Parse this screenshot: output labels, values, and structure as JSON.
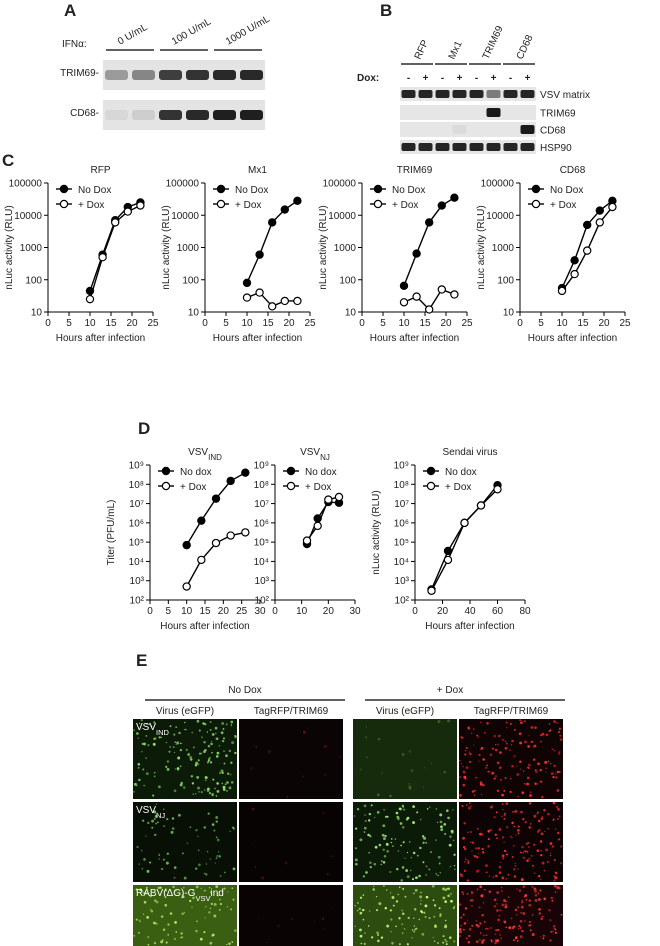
{
  "panel_a": {
    "letter": "A",
    "treatment": "IFNα:",
    "doses": [
      "0 U/mL",
      "100 U/mL",
      "1000 U/mL"
    ],
    "rows": [
      "TRIM69-",
      "CD68-"
    ]
  },
  "panel_b": {
    "letter": "B",
    "groups": [
      "RFP",
      "Mx1",
      "TRIM69",
      "CD68"
    ],
    "dox_label": "Dox:",
    "signs": [
      "-",
      "+"
    ],
    "rows": [
      "VSV matrix",
      "TRIM69",
      "CD68",
      "HSP90"
    ]
  },
  "panel_c": {
    "letter": "C"
  },
  "panel_d": {
    "letter": "D"
  },
  "chart_data": [
    {
      "type": "line",
      "title": "RFP",
      "xlabel": "Hours after infection",
      "ylabel": "nLuc activity (RLU)",
      "x": [
        10,
        13,
        16,
        19,
        22
      ],
      "series": [
        {
          "name": "No Dox",
          "color": "#000000",
          "marker": "filled",
          "values": [
            45,
            600,
            7000,
            18000,
            25000
          ]
        },
        {
          "name": "+ Dox",
          "color": "#000000",
          "marker": "open",
          "values": [
            25,
            500,
            6000,
            13000,
            20000
          ]
        }
      ],
      "xlim": [
        0,
        25
      ],
      "xticks": [
        0,
        5,
        10,
        15,
        20,
        25
      ],
      "ylim": [
        10,
        100000
      ],
      "yticks": [
        10,
        100,
        1000,
        10000,
        100000
      ],
      "ylog": true,
      "legend": "upper left"
    },
    {
      "type": "line",
      "title": "Mx1",
      "xlabel": "Hours after infection",
      "ylabel": "nLuc activity (RLU)",
      "x": [
        10,
        13,
        16,
        19,
        22
      ],
      "series": [
        {
          "name": "No Dox",
          "color": "#000000",
          "marker": "filled",
          "values": [
            80,
            600,
            6000,
            15000,
            28000
          ]
        },
        {
          "name": "+ Dox",
          "color": "#000000",
          "marker": "open",
          "values": [
            28,
            40,
            15,
            22,
            22
          ]
        }
      ],
      "xlim": [
        0,
        25
      ],
      "xticks": [
        0,
        5,
        10,
        15,
        20,
        25
      ],
      "ylim": [
        10,
        100000
      ],
      "yticks": [
        10,
        100,
        1000,
        10000,
        100000
      ],
      "ylog": true,
      "legend": "upper left"
    },
    {
      "type": "line",
      "title": "TRIM69",
      "xlabel": "Hours after infection",
      "ylabel": "nLuc activity (RLU)",
      "x": [
        10,
        13,
        16,
        19,
        22
      ],
      "series": [
        {
          "name": "No Dox",
          "color": "#000000",
          "marker": "filled",
          "values": [
            65,
            650,
            6000,
            20000,
            35000
          ]
        },
        {
          "name": "+ Dox",
          "color": "#000000",
          "marker": "open",
          "values": [
            20,
            30,
            12,
            50,
            35
          ]
        }
      ],
      "xlim": [
        0,
        25
      ],
      "xticks": [
        0,
        5,
        10,
        15,
        20,
        25
      ],
      "ylim": [
        10,
        100000
      ],
      "yticks": [
        10,
        100,
        1000,
        10000,
        100000
      ],
      "ylog": true,
      "legend": "upper left"
    },
    {
      "type": "line",
      "title": "CD68",
      "xlabel": "Hours after infection",
      "ylabel": "nLuc activity (RLU)",
      "x": [
        10,
        13,
        16,
        19,
        22
      ],
      "series": [
        {
          "name": "No Dox",
          "color": "#000000",
          "marker": "filled",
          "values": [
            55,
            400,
            5000,
            14000,
            28000
          ]
        },
        {
          "name": "+ Dox",
          "color": "#000000",
          "marker": "open",
          "values": [
            45,
            150,
            800,
            6000,
            18000
          ]
        }
      ],
      "xlim": [
        0,
        25
      ],
      "xticks": [
        0,
        5,
        10,
        15,
        20,
        25
      ],
      "ylim": [
        10,
        100000
      ],
      "yticks": [
        10,
        100,
        1000,
        10000,
        100000
      ],
      "ylog": true,
      "legend": "upper left"
    },
    {
      "type": "line",
      "title": "VSV",
      "title_sub": "IND",
      "xlabel": "Hours after infection",
      "ylabel": "Titer (PFU/mL)",
      "x": [
        10,
        14,
        18,
        22,
        26
      ],
      "series": [
        {
          "name": "No dox",
          "color": "#000000",
          "marker": "filled",
          "values": [
            70000,
            1300000,
            18000000,
            150000000,
            400000000
          ]
        },
        {
          "name": "+ Dox",
          "color": "#000000",
          "marker": "open",
          "values": [
            500,
            12000,
            90000,
            220000,
            320000
          ]
        }
      ],
      "xlim": [
        0,
        30
      ],
      "xticks": [
        0,
        5,
        10,
        15,
        20,
        25,
        30
      ],
      "ylim": [
        100,
        1000000000
      ],
      "yticks": [
        {
          "value": 100,
          "label": "10²"
        },
        {
          "value": 1000,
          "label": "10³"
        },
        {
          "value": 10000,
          "label": "10⁴"
        },
        {
          "value": 100000,
          "label": "10⁵"
        },
        {
          "value": 1000000,
          "label": "10⁶"
        },
        {
          "value": 10000000,
          "label": "10⁷"
        },
        {
          "value": 100000000,
          "label": "10⁸"
        },
        {
          "value": 1000000000,
          "label": "10⁹"
        }
      ],
      "ylog": true,
      "legend": "upper left"
    },
    {
      "type": "line",
      "title": "VSV",
      "title_sub": "NJ",
      "xlabel": "",
      "x": [
        12,
        16,
        20,
        24
      ],
      "series": [
        {
          "name": "No dox",
          "color": "#000000",
          "marker": "filled",
          "values": [
            80000,
            1700000,
            12000000,
            11000000
          ]
        },
        {
          "name": "+ Dox",
          "color": "#000000",
          "marker": "open",
          "values": [
            120000,
            700000,
            16000000,
            22000000
          ]
        }
      ],
      "xlim": [
        0,
        30
      ],
      "xticks": [
        0,
        10,
        20,
        30
      ],
      "ylim": [
        100,
        1000000000
      ],
      "yticks": [
        {
          "value": 100,
          "label": "10²"
        },
        {
          "value": 1000,
          "label": "10³"
        },
        {
          "value": 10000,
          "label": "10⁴"
        },
        {
          "value": 100000,
          "label": "10⁵"
        },
        {
          "value": 1000000,
          "label": "10⁶"
        },
        {
          "value": 10000000,
          "label": "10⁷"
        },
        {
          "value": 100000000,
          "label": "10⁸"
        },
        {
          "value": 1000000000,
          "label": "10⁹"
        }
      ],
      "ylog": true,
      "legend": "upper left"
    },
    {
      "type": "line",
      "title": "Sendai virus",
      "xlabel": "Hours after infection",
      "ylabel": "nLuc activity (RLU)",
      "x": [
        12,
        24,
        36,
        48,
        60
      ],
      "series": [
        {
          "name": "No dox",
          "color": "#000000",
          "marker": "filled",
          "values": [
            350,
            35000,
            1000000,
            8000000,
            90000000
          ]
        },
        {
          "name": "+ Dox",
          "color": "#000000",
          "marker": "open",
          "values": [
            300,
            12000,
            1000000,
            8000000,
            55000000
          ]
        }
      ],
      "xlim": [
        0,
        80
      ],
      "xticks": [
        0,
        20,
        40,
        60,
        80
      ],
      "ylim": [
        100,
        1000000000
      ],
      "yticks": [
        {
          "value": 100,
          "label": "10²"
        },
        {
          "value": 1000,
          "label": "10³"
        },
        {
          "value": 10000,
          "label": "10⁴"
        },
        {
          "value": 100000,
          "label": "10⁵"
        },
        {
          "value": 1000000,
          "label": "10⁶"
        },
        {
          "value": 10000000,
          "label": "10⁷"
        },
        {
          "value": 100000000,
          "label": "10⁸"
        },
        {
          "value": 1000000000,
          "label": "10⁹"
        }
      ],
      "ylog": true,
      "legend": "upper left"
    }
  ],
  "panel_e": {
    "letter": "E",
    "conditions": [
      "No Dox",
      "+ Dox"
    ],
    "columns": [
      "Virus (eGFP)",
      "TagRFP/TRIM69",
      "Virus (eGFP)",
      "TagRFP/TRIM69"
    ],
    "rows": [
      {
        "text": "VSV",
        "sub": "IND"
      },
      {
        "text": "VSV",
        "sub": "NJ"
      },
      {
        "text": "RABV(ΔG)-G",
        "sub": "VSV",
        "after": "ind"
      }
    ]
  }
}
